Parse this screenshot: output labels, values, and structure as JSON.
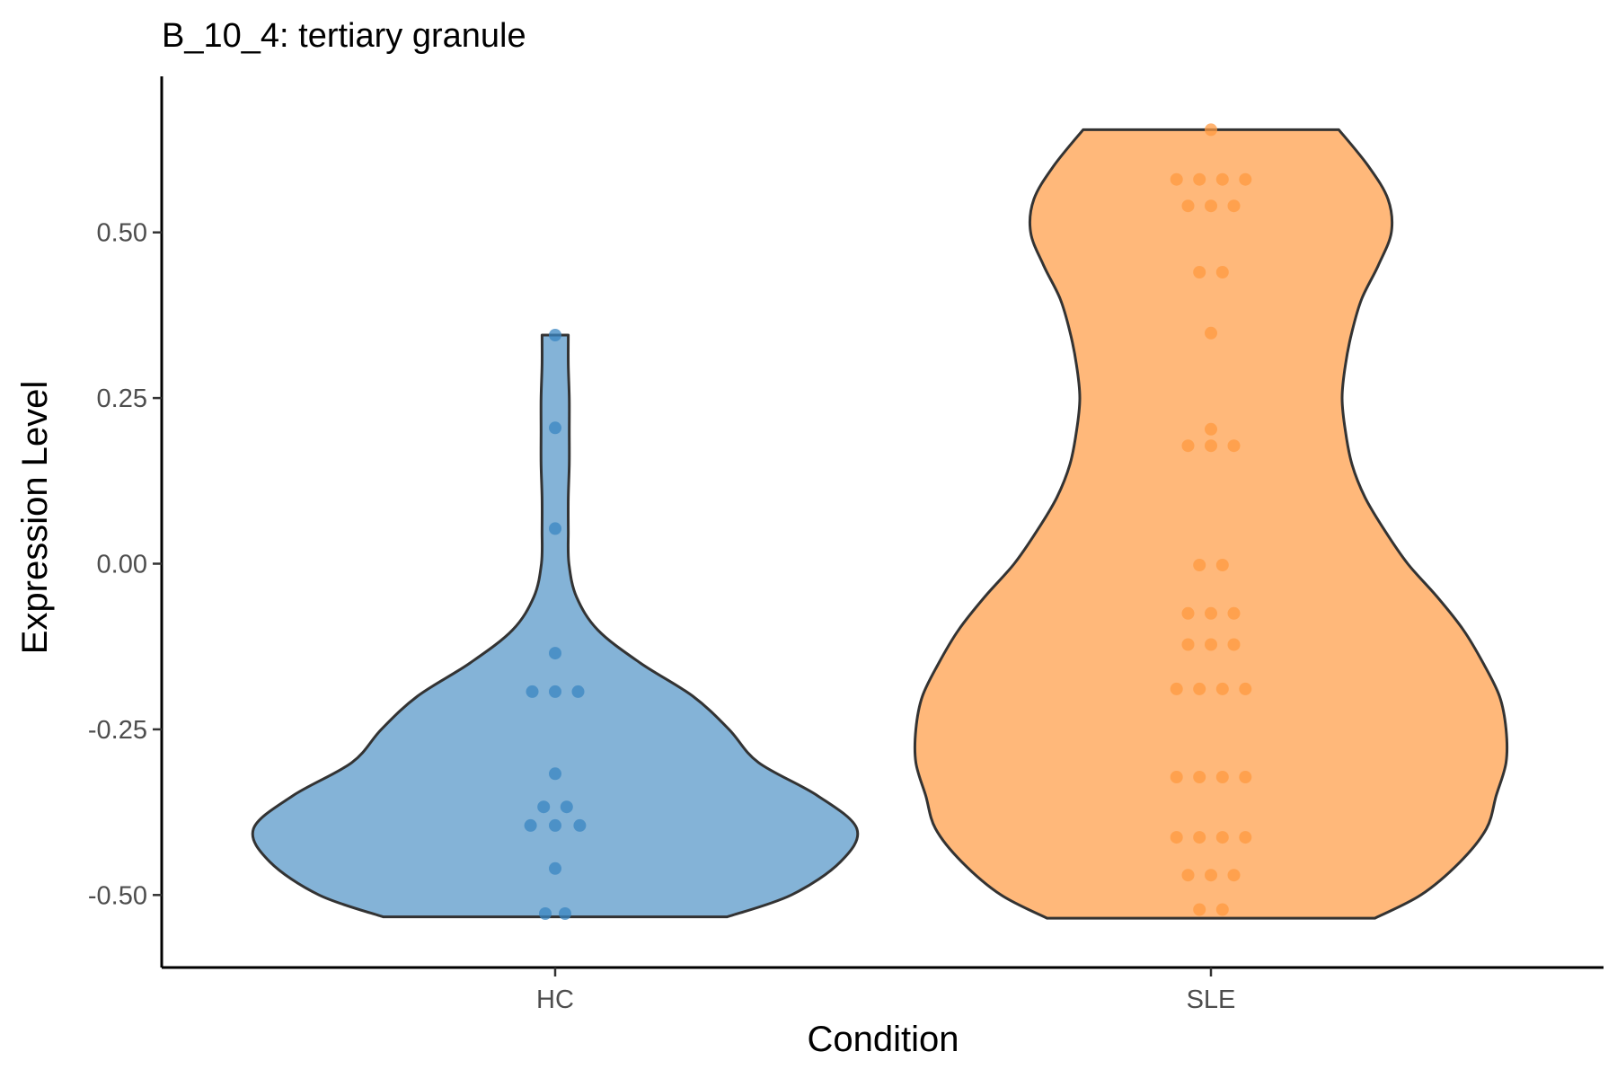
{
  "chart_data": {
    "type": "violin",
    "title": "B_10_4: tertiary granule",
    "xlabel": "Condition",
    "ylabel": "Expression Level",
    "ylim": [
      -0.6,
      0.75
    ],
    "yticks": [
      -0.5,
      -0.25,
      0.0,
      0.25,
      0.5
    ],
    "ytick_labels": [
      "-0.50",
      "-0.25",
      "0.00",
      "0.25",
      "0.50"
    ],
    "categories": [
      "HC",
      "SLE"
    ],
    "grid": false,
    "legend": "none",
    "series": [
      {
        "category": "HC",
        "fill_color": "#84b3d7",
        "point_color": "#3a86c2",
        "violin_profile": [
          [
            -0.533,
            0.525
          ],
          [
            -0.5,
            0.72
          ],
          [
            -0.45,
            0.87
          ],
          [
            -0.4,
            0.92
          ],
          [
            -0.35,
            0.8
          ],
          [
            -0.3,
            0.62
          ],
          [
            -0.25,
            0.53
          ],
          [
            -0.2,
            0.42
          ],
          [
            -0.15,
            0.26
          ],
          [
            -0.1,
            0.13
          ],
          [
            -0.05,
            0.065
          ],
          [
            0.0,
            0.042
          ],
          [
            0.05,
            0.04
          ],
          [
            0.1,
            0.04
          ],
          [
            0.15,
            0.043
          ],
          [
            0.2,
            0.043
          ],
          [
            0.25,
            0.043
          ],
          [
            0.3,
            0.04
          ],
          [
            0.345,
            0.04
          ]
        ],
        "points": [
          [
            -0.528,
            -0.03
          ],
          [
            -0.528,
            0.03
          ],
          [
            -0.46,
            0
          ],
          [
            -0.395,
            -0.075
          ],
          [
            -0.395,
            0
          ],
          [
            -0.395,
            0.075
          ],
          [
            -0.367,
            -0.035
          ],
          [
            -0.367,
            0.035
          ],
          [
            -0.317,
            0
          ],
          [
            -0.193,
            -0.07
          ],
          [
            -0.193,
            0
          ],
          [
            -0.193,
            0.07
          ],
          [
            -0.135,
            0
          ],
          [
            0.053,
            0
          ],
          [
            0.205,
            0
          ],
          [
            0.345,
            0
          ]
        ]
      },
      {
        "category": "SLE",
        "fill_color": "#ffb87a",
        "point_color": "#ff9a40",
        "violin_profile": [
          [
            -0.535,
            0.5
          ],
          [
            -0.5,
            0.64
          ],
          [
            -0.45,
            0.76
          ],
          [
            -0.4,
            0.84
          ],
          [
            -0.35,
            0.87
          ],
          [
            -0.3,
            0.9
          ],
          [
            -0.25,
            0.9
          ],
          [
            -0.2,
            0.88
          ],
          [
            -0.15,
            0.83
          ],
          [
            -0.1,
            0.77
          ],
          [
            -0.05,
            0.69
          ],
          [
            0.0,
            0.6
          ],
          [
            0.05,
            0.53
          ],
          [
            0.1,
            0.47
          ],
          [
            0.15,
            0.43
          ],
          [
            0.2,
            0.41
          ],
          [
            0.25,
            0.4
          ],
          [
            0.3,
            0.41
          ],
          [
            0.35,
            0.43
          ],
          [
            0.4,
            0.46
          ],
          [
            0.45,
            0.51
          ],
          [
            0.5,
            0.55
          ],
          [
            0.55,
            0.54
          ],
          [
            0.6,
            0.48
          ],
          [
            0.655,
            0.39
          ]
        ],
        "points": [
          [
            -0.522,
            -0.035
          ],
          [
            -0.522,
            0.035
          ],
          [
            -0.47,
            -0.07
          ],
          [
            -0.47,
            0
          ],
          [
            -0.47,
            0.07
          ],
          [
            -0.413,
            -0.105
          ],
          [
            -0.413,
            -0.035
          ],
          [
            -0.413,
            0.035
          ],
          [
            -0.413,
            0.105
          ],
          [
            -0.322,
            -0.105
          ],
          [
            -0.322,
            -0.035
          ],
          [
            -0.322,
            0.035
          ],
          [
            -0.322,
            0.105
          ],
          [
            -0.189,
            -0.105
          ],
          [
            -0.189,
            -0.035
          ],
          [
            -0.189,
            0.035
          ],
          [
            -0.189,
            0.105
          ],
          [
            -0.122,
            -0.07
          ],
          [
            -0.122,
            0
          ],
          [
            -0.122,
            0.07
          ],
          [
            -0.075,
            -0.07
          ],
          [
            -0.075,
            0
          ],
          [
            -0.075,
            0.07
          ],
          [
            -0.002,
            -0.035
          ],
          [
            -0.002,
            0.035
          ],
          [
            0.178,
            -0.07
          ],
          [
            0.178,
            0
          ],
          [
            0.178,
            0.07
          ],
          [
            0.203,
            0
          ],
          [
            0.348,
            0
          ],
          [
            0.44,
            -0.035
          ],
          [
            0.44,
            0.035
          ],
          [
            0.54,
            -0.07
          ],
          [
            0.54,
            0
          ],
          [
            0.54,
            0.07
          ],
          [
            0.58,
            -0.105
          ],
          [
            0.58,
            -0.035
          ],
          [
            0.58,
            0.035
          ],
          [
            0.58,
            0.105
          ],
          [
            0.655,
            0
          ]
        ]
      }
    ]
  }
}
